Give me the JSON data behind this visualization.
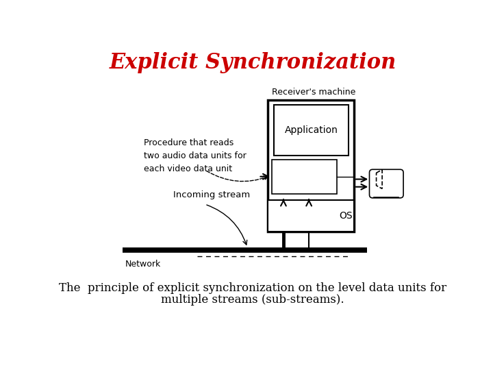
{
  "title": "Explicit Synchronization",
  "title_color": "#cc0000",
  "title_fontsize": 22,
  "caption_line1": "The  principle of explicit synchronization on the level data units for",
  "caption_line2": "multiple streams (sub-streams).",
  "caption_fontsize": 12,
  "bg_color": "#ffffff",
  "diagram": {
    "receiver_label": "Receiver's machine",
    "application_label": "Application",
    "os_label": "OS",
    "network_label": "Network",
    "incoming_stream_label": "Incoming stream",
    "procedure_label": "Procedure that reads\ntwo audio data units for\neach video data unit"
  }
}
